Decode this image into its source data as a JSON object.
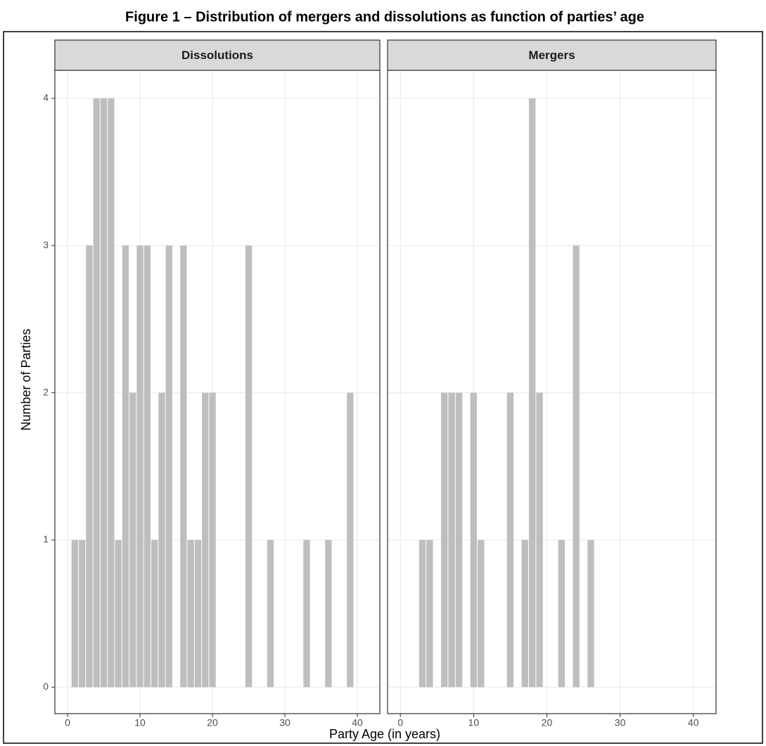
{
  "title": "Figure 1 – Distribution of mergers and dissolutions as function of parties’ age",
  "x_label": "Party Age (in years)",
  "y_label": "Number of Parties",
  "chart_data": [
    {
      "type": "histogram",
      "title": "Dissolutions",
      "color": "#bebebe",
      "grid": true,
      "bins": [
        0.5,
        1.5,
        2.5,
        3.5,
        4.5,
        5.5,
        6.5,
        7.5,
        8.5,
        9.5,
        10.5,
        11.5,
        12.5,
        13.5,
        14.5,
        15.5,
        16.5,
        17.5,
        18.5,
        19.5,
        20.5,
        21.5,
        22.5,
        23.5,
        24.5,
        25.5,
        26.5,
        27.5,
        28.5,
        29.5,
        30.5,
        31.5,
        32.5,
        33.5,
        34.5,
        35.5,
        36.5,
        37.5,
        38.5,
        39.5
      ],
      "counts": [
        1,
        1,
        3,
        4,
        4,
        4,
        1,
        3,
        2,
        3,
        3,
        1,
        2,
        3,
        0,
        3,
        1,
        1,
        2,
        2,
        0,
        0,
        0,
        0,
        3,
        0,
        0,
        1,
        0,
        0,
        0,
        0,
        1,
        0,
        0,
        1,
        0,
        0,
        2
      ],
      "xlim": [
        -1.75,
        43.1
      ],
      "ylim": [
        -0.18,
        4.19
      ],
      "xticks": [
        0,
        10,
        20,
        30,
        40
      ],
      "yticks": [
        0,
        1,
        2,
        3,
        4
      ]
    },
    {
      "type": "histogram",
      "title": "Mergers",
      "color": "#bebebe",
      "grid": true,
      "bins": [
        0.5,
        1.5,
        2.5,
        3.5,
        4.5,
        5.5,
        6.5,
        7.5,
        8.5,
        9.5,
        10.5,
        11.5,
        12.5,
        13.5,
        14.5,
        15.5,
        16.5,
        17.5,
        18.5,
        19.5,
        20.5,
        21.5,
        22.5,
        23.5,
        24.5,
        25.5,
        26.5,
        27.5,
        28.5,
        29.5,
        30.5,
        31.5,
        32.5,
        33.5,
        34.5,
        35.5,
        36.5,
        37.5,
        38.5,
        39.5
      ],
      "counts": [
        0,
        0,
        1,
        1,
        0,
        2,
        2,
        2,
        0,
        2,
        1,
        0,
        0,
        0,
        2,
        0,
        1,
        4,
        2,
        0,
        0,
        1,
        0,
        3,
        0,
        1,
        0,
        0,
        0,
        0,
        0,
        0,
        0,
        0,
        0,
        0,
        0,
        0,
        0
      ],
      "xlim": [
        -1.75,
        43.1
      ],
      "ylim": [
        -0.18,
        4.19
      ],
      "xticks": [
        0,
        10,
        20,
        30,
        40
      ],
      "yticks": [
        0,
        1,
        2,
        3,
        4
      ]
    }
  ]
}
